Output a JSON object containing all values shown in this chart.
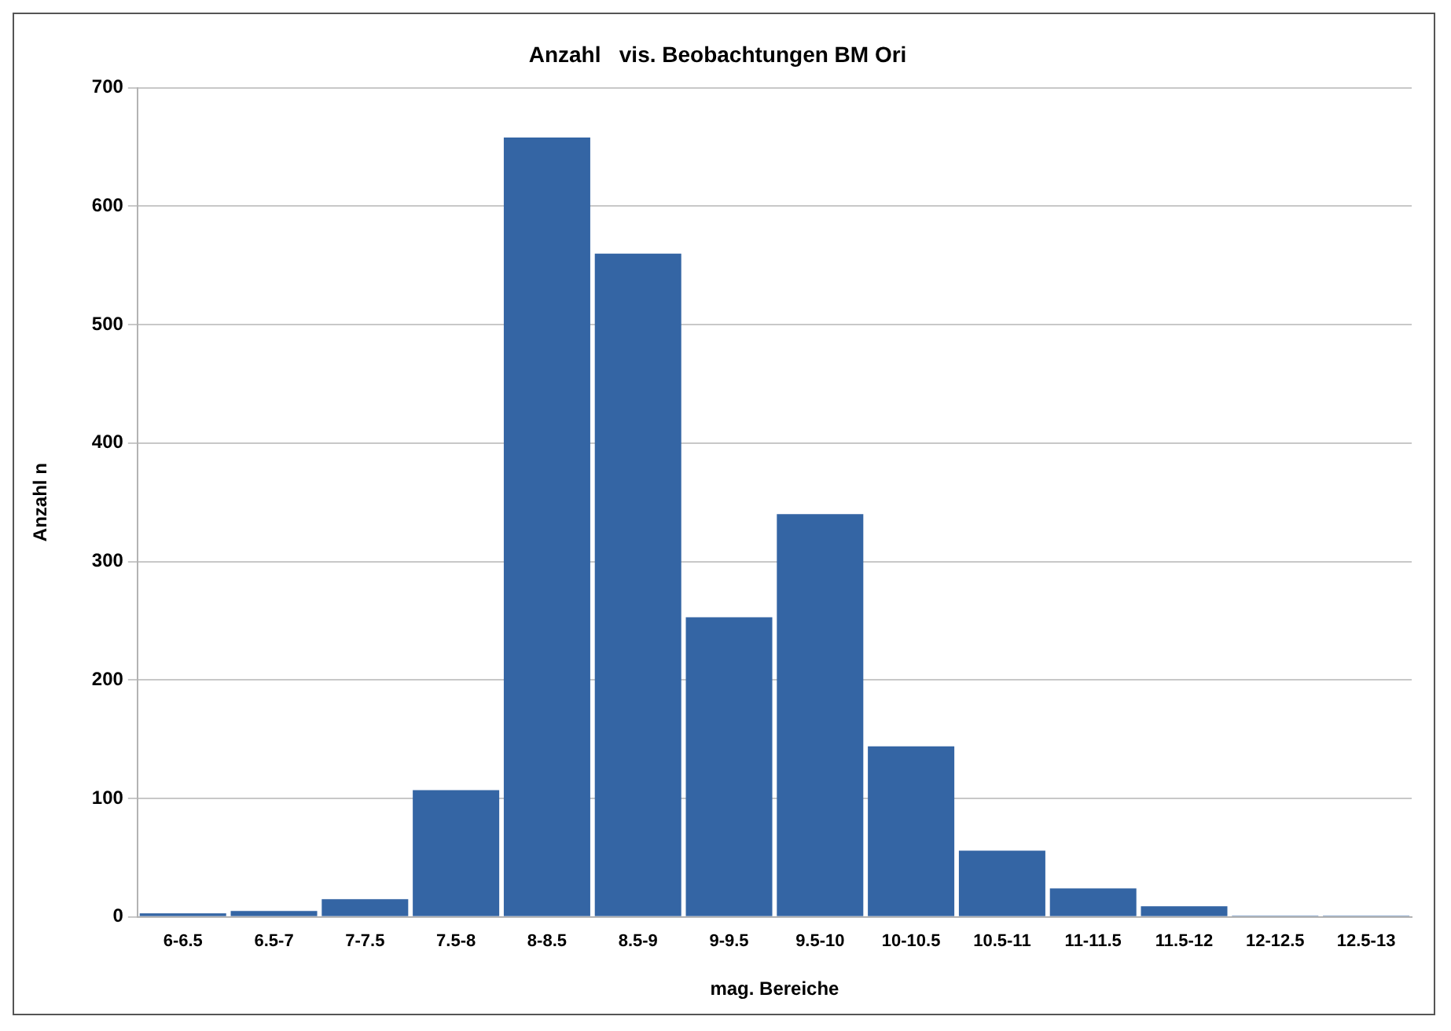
{
  "chart_data": {
    "type": "bar",
    "title": "Anzahl   vis. Beobachtungen BM Ori",
    "xlabel": "mag. Bereiche",
    "ylabel": "Anzahl n",
    "categories": [
      "6-6.5",
      "6.5-7",
      "7-7.5",
      "7.5-8",
      "8-8.5",
      "8.5-9",
      "9-9.5",
      "9.5-10",
      "10-10.5",
      "10.5-11",
      "11-11.5",
      "11.5-12",
      "12-12.5",
      "12.5-13"
    ],
    "values": [
      3,
      5,
      15,
      107,
      658,
      560,
      253,
      340,
      144,
      56,
      24,
      9,
      1,
      1
    ],
    "color": "#3465a4",
    "ylim": [
      0,
      700
    ],
    "yticks": [
      0,
      100,
      200,
      300,
      400,
      500,
      600,
      700
    ],
    "grid": "y",
    "legend": false
  }
}
